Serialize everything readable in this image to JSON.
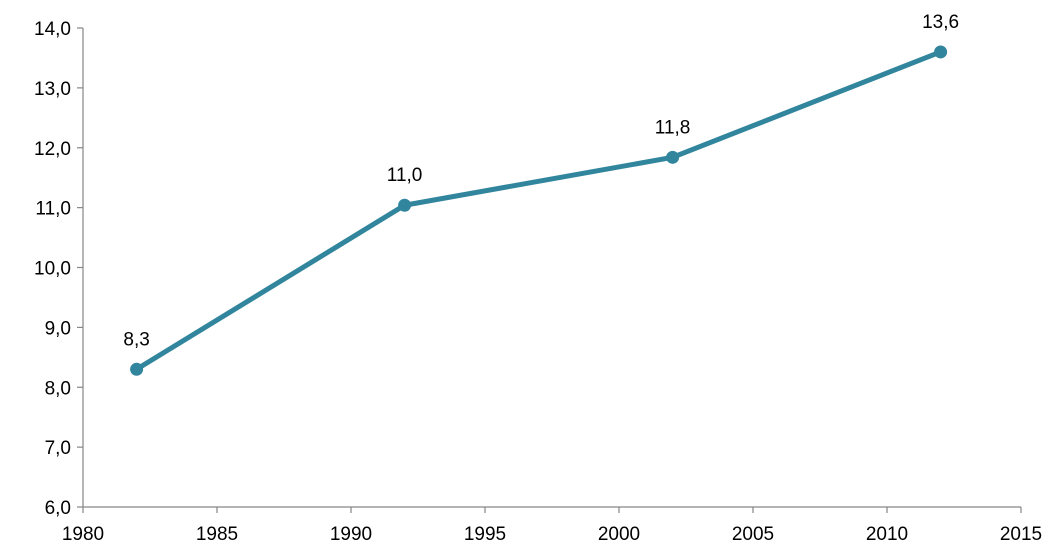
{
  "chart_data": {
    "type": "line",
    "title": "",
    "xlabel": "",
    "ylabel": "",
    "x": [
      1982,
      1992,
      2002,
      2012
    ],
    "series": [
      {
        "values": [
          8.3,
          11.04,
          11.84,
          13.6
        ],
        "labels": [
          "8,3",
          "11,0",
          "11,8",
          "13,6"
        ],
        "color": "#31859C"
      }
    ],
    "xlim": [
      1980,
      2015
    ],
    "ylim": [
      6.0,
      14.0
    ],
    "x_ticks": [
      1980,
      1985,
      1990,
      1995,
      2000,
      2005,
      2010,
      2015
    ],
    "x_tick_labels": [
      "1980",
      "1985",
      "1990",
      "1995",
      "2000",
      "2005",
      "2010",
      "2015"
    ],
    "y_ticks": [
      6,
      7,
      8,
      9,
      10,
      11,
      12,
      13,
      14
    ],
    "y_tick_labels": [
      "6,0",
      "7,0",
      "8,0",
      "9,0",
      "10,0",
      "11,0",
      "12,0",
      "13,0",
      "14,0"
    ],
    "grid": false,
    "legend": "none",
    "axis_color": "#868686"
  }
}
